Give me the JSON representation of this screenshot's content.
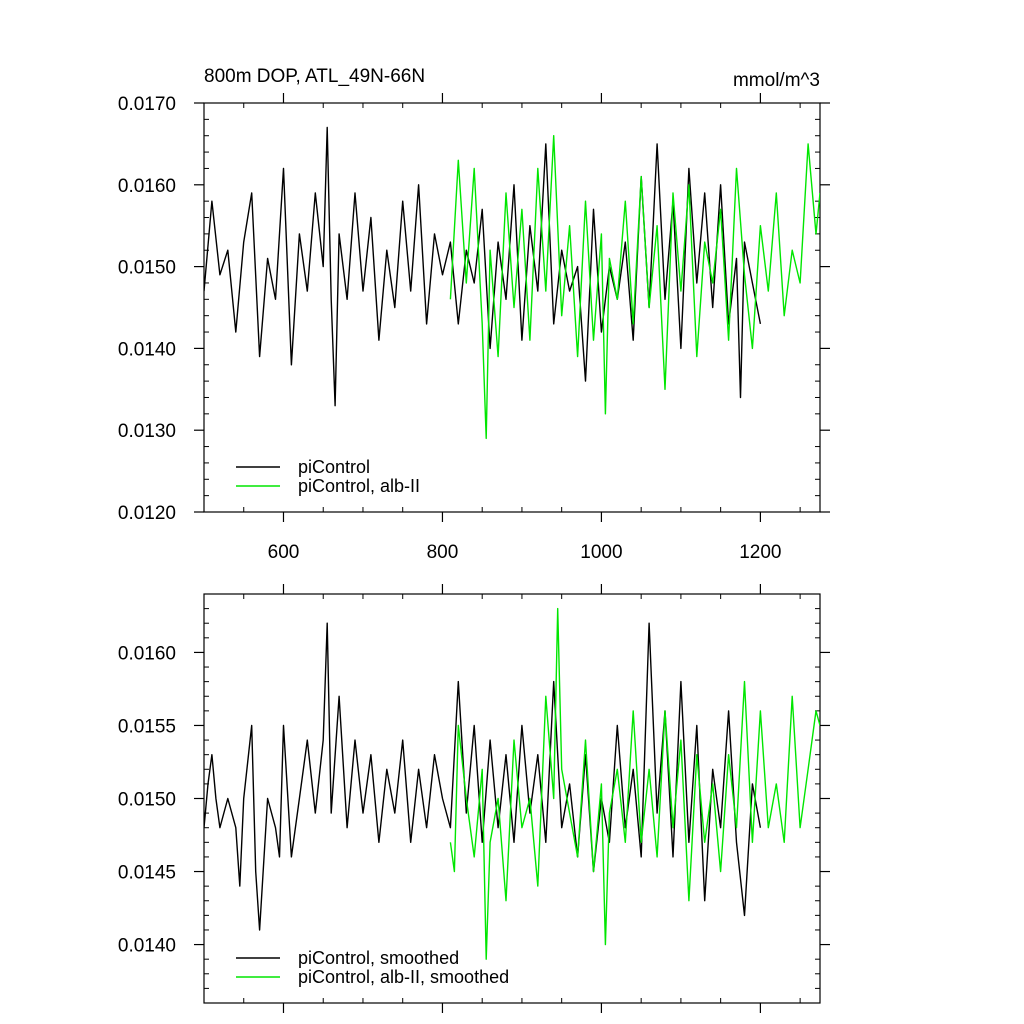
{
  "chart_data": [
    {
      "type": "line",
      "title": "800m DOP, ATL_49N-66N",
      "units": "mmol/m^3",
      "xlim": [
        500,
        1275
      ],
      "ylim": [
        0.012,
        0.017
      ],
      "xticks": [
        600,
        800,
        1000,
        1200
      ],
      "xtick_labels": [
        "600",
        "800",
        "1000",
        "1200"
      ],
      "yticks": [
        0.012,
        0.013,
        0.014,
        0.015,
        0.016,
        0.017
      ],
      "ytick_labels": [
        "0.0120",
        "0.0130",
        "0.0140",
        "0.0150",
        "0.0160",
        "0.0170"
      ],
      "legend_position": "bottom-left",
      "series": [
        {
          "name": "piControl",
          "color": "#000000",
          "x": [
            500,
            510,
            520,
            530,
            540,
            550,
            560,
            570,
            580,
            590,
            600,
            610,
            620,
            630,
            640,
            650,
            655,
            660,
            665,
            670,
            680,
            690,
            700,
            710,
            720,
            730,
            740,
            750,
            760,
            770,
            780,
            790,
            800,
            810,
            820,
            830,
            840,
            850,
            860,
            870,
            880,
            890,
            900,
            910,
            920,
            930,
            940,
            950,
            960,
            970,
            980,
            990,
            1000,
            1010,
            1020,
            1030,
            1040,
            1050,
            1060,
            1070,
            1080,
            1090,
            1100,
            1110,
            1120,
            1130,
            1140,
            1150,
            1160,
            1170,
            1175,
            1180,
            1190,
            1200
          ],
          "y": [
            0.0147,
            0.0158,
            0.0149,
            0.0152,
            0.0142,
            0.0153,
            0.0159,
            0.0139,
            0.0151,
            0.0146,
            0.0162,
            0.0138,
            0.0154,
            0.0147,
            0.0159,
            0.015,
            0.0167,
            0.0146,
            0.0133,
            0.0154,
            0.0146,
            0.0159,
            0.0147,
            0.0156,
            0.0141,
            0.0152,
            0.0145,
            0.0158,
            0.0147,
            0.016,
            0.0143,
            0.0154,
            0.0149,
            0.0153,
            0.0143,
            0.0152,
            0.0148,
            0.0157,
            0.014,
            0.0153,
            0.0146,
            0.016,
            0.0141,
            0.0155,
            0.0147,
            0.0165,
            0.0143,
            0.0152,
            0.0147,
            0.015,
            0.0136,
            0.0157,
            0.0142,
            0.015,
            0.0146,
            0.0153,
            0.0141,
            0.0161,
            0.0145,
            0.0165,
            0.0146,
            0.0158,
            0.014,
            0.0162,
            0.0148,
            0.0159,
            0.0145,
            0.016,
            0.0143,
            0.0151,
            0.0134,
            0.0153,
            0.0148,
            0.0143
          ]
        },
        {
          "name": "piControl, alb-II",
          "color": "#00e600",
          "x": [
            810,
            820,
            830,
            840,
            850,
            855,
            860,
            870,
            880,
            890,
            900,
            910,
            920,
            930,
            940,
            950,
            960,
            970,
            980,
            990,
            1000,
            1005,
            1010,
            1020,
            1030,
            1040,
            1050,
            1060,
            1070,
            1080,
            1090,
            1100,
            1110,
            1120,
            1130,
            1140,
            1150,
            1160,
            1170,
            1180,
            1190,
            1200,
            1210,
            1220,
            1230,
            1240,
            1250,
            1260,
            1270,
            1275
          ],
          "y": [
            0.0146,
            0.0163,
            0.0148,
            0.0162,
            0.0143,
            0.0129,
            0.0152,
            0.0139,
            0.0159,
            0.0145,
            0.0157,
            0.0141,
            0.0162,
            0.0147,
            0.0166,
            0.0144,
            0.0155,
            0.0139,
            0.0158,
            0.0141,
            0.0154,
            0.0132,
            0.0151,
            0.0146,
            0.0158,
            0.0143,
            0.0161,
            0.0145,
            0.0155,
            0.0135,
            0.0159,
            0.0147,
            0.016,
            0.0139,
            0.0153,
            0.0148,
            0.0157,
            0.0141,
            0.0162,
            0.0149,
            0.014,
            0.0155,
            0.0147,
            0.0159,
            0.0144,
            0.0152,
            0.0148,
            0.0165,
            0.0154,
            0.0159
          ]
        }
      ]
    },
    {
      "type": "line",
      "xlim": [
        500,
        1275
      ],
      "ylim": [
        0.0136,
        0.0164
      ],
      "xticks": [
        600,
        800,
        1000,
        1200
      ],
      "yticks": [
        0.014,
        0.0145,
        0.015,
        0.0155,
        0.016
      ],
      "ytick_labels": [
        "0.0140",
        "0.0145",
        "0.0150",
        "0.0155",
        "0.0160"
      ],
      "legend_position": "bottom-left",
      "series": [
        {
          "name": "piControl, smoothed",
          "color": "#000000",
          "x": [
            500,
            505,
            510,
            515,
            520,
            530,
            540,
            545,
            550,
            560,
            565,
            570,
            580,
            590,
            595,
            600,
            610,
            620,
            630,
            640,
            650,
            655,
            660,
            670,
            680,
            690,
            700,
            710,
            720,
            730,
            740,
            750,
            760,
            770,
            780,
            790,
            800,
            810,
            820,
            830,
            840,
            850,
            860,
            870,
            880,
            890,
            900,
            910,
            920,
            930,
            940,
            950,
            960,
            970,
            980,
            990,
            1000,
            1010,
            1020,
            1030,
            1040,
            1050,
            1060,
            1070,
            1080,
            1090,
            1100,
            1110,
            1120,
            1130,
            1140,
            1150,
            1160,
            1170,
            1180,
            1190,
            1200
          ],
          "y": [
            0.0148,
            0.0151,
            0.0153,
            0.015,
            0.0148,
            0.015,
            0.0148,
            0.0144,
            0.015,
            0.0155,
            0.0145,
            0.0141,
            0.015,
            0.0148,
            0.0146,
            0.0155,
            0.0146,
            0.015,
            0.0154,
            0.0149,
            0.0154,
            0.0162,
            0.0149,
            0.0157,
            0.0148,
            0.0154,
            0.0149,
            0.0153,
            0.0147,
            0.0152,
            0.0149,
            0.0154,
            0.0147,
            0.0152,
            0.0148,
            0.0153,
            0.015,
            0.0148,
            0.0158,
            0.0149,
            0.0155,
            0.0147,
            0.0154,
            0.0148,
            0.0153,
            0.0147,
            0.0155,
            0.0149,
            0.0153,
            0.0147,
            0.0158,
            0.0148,
            0.0151,
            0.0146,
            0.0153,
            0.0145,
            0.015,
            0.0147,
            0.0155,
            0.0148,
            0.0152,
            0.0146,
            0.0162,
            0.0149,
            0.0156,
            0.0146,
            0.0158,
            0.0147,
            0.0155,
            0.0143,
            0.0152,
            0.0148,
            0.0156,
            0.0147,
            0.0142,
            0.0151,
            0.0148
          ]
        },
        {
          "name": "piControl, alb-II, smoothed",
          "color": "#00e600",
          "x": [
            810,
            815,
            820,
            830,
            840,
            850,
            855,
            860,
            870,
            880,
            890,
            900,
            910,
            920,
            930,
            940,
            945,
            950,
            960,
            970,
            980,
            990,
            1000,
            1005,
            1010,
            1020,
            1030,
            1040,
            1050,
            1060,
            1070,
            1080,
            1090,
            1100,
            1110,
            1120,
            1130,
            1140,
            1150,
            1160,
            1170,
            1180,
            1190,
            1200,
            1210,
            1220,
            1230,
            1240,
            1250,
            1260,
            1270,
            1275
          ],
          "y": [
            0.0147,
            0.0145,
            0.0155,
            0.015,
            0.0146,
            0.0152,
            0.0139,
            0.0147,
            0.015,
            0.0143,
            0.0154,
            0.0148,
            0.015,
            0.0144,
            0.0157,
            0.015,
            0.0163,
            0.0152,
            0.0149,
            0.0146,
            0.0154,
            0.0145,
            0.0151,
            0.014,
            0.0149,
            0.0152,
            0.0147,
            0.0156,
            0.0147,
            0.0152,
            0.0146,
            0.0156,
            0.0148,
            0.0154,
            0.0143,
            0.0153,
            0.0147,
            0.0151,
            0.0145,
            0.0153,
            0.0148,
            0.0158,
            0.0147,
            0.0156,
            0.0148,
            0.0151,
            0.0147,
            0.0157,
            0.0148,
            0.0152,
            0.0156,
            0.0155
          ]
        }
      ]
    }
  ]
}
